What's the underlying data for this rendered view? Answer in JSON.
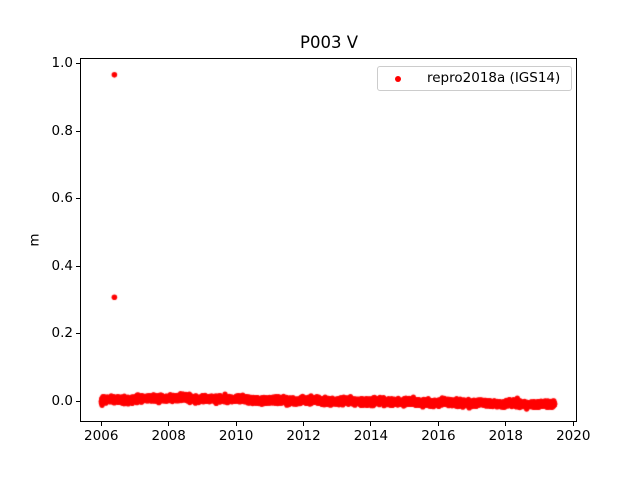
{
  "chart_data": {
    "type": "scatter",
    "title": "P003 V",
    "xlabel": "",
    "ylabel": "m",
    "xlim": [
      2005.37,
      2020.14
    ],
    "ylim": [
      -0.062,
      1.017
    ],
    "xticks": [
      2006,
      2008,
      2010,
      2012,
      2014,
      2016,
      2018,
      2020
    ],
    "yticks": [
      0.0,
      0.2,
      0.4,
      0.6,
      0.8,
      1.0
    ],
    "grid": false,
    "legend": {
      "label": "repro2018a (IGS14)",
      "position": "upper right",
      "border_color": "#cccccc"
    },
    "series": [
      {
        "name": "repro2018a (IGS14)",
        "marker": "point",
        "color": "#ff0000",
        "outliers": [
          [
            2006.39,
            0.967
          ],
          [
            2006.39,
            0.308
          ]
        ],
        "band": {
          "x_start": 2006.0,
          "x_end": 2019.45,
          "points_per_year": 365,
          "jitter_std": 0.0045,
          "seasonal_amplitude": 0.0015,
          "center_profile": [
            [
              2006.0,
              0.002
            ],
            [
              2006.6,
              0.004
            ],
            [
              2007.2,
              0.005
            ],
            [
              2007.7,
              0.01
            ],
            [
              2008.0,
              0.006
            ],
            [
              2008.45,
              0.011
            ],
            [
              2008.8,
              0.007
            ],
            [
              2009.3,
              0.006
            ],
            [
              2009.8,
              0.007
            ],
            [
              2010.3,
              0.004
            ],
            [
              2011.0,
              0.002
            ],
            [
              2011.7,
              0.001
            ],
            [
              2012.3,
              0.001
            ],
            [
              2013.0,
              0.0
            ],
            [
              2013.7,
              -0.001
            ],
            [
              2014.3,
              -0.002
            ],
            [
              2015.0,
              -0.003
            ],
            [
              2015.7,
              -0.004
            ],
            [
              2016.3,
              -0.005
            ],
            [
              2017.0,
              -0.006
            ],
            [
              2017.7,
              -0.008
            ],
            [
              2018.3,
              -0.008
            ],
            [
              2019.0,
              -0.009
            ],
            [
              2019.45,
              -0.009
            ]
          ]
        }
      }
    ]
  }
}
